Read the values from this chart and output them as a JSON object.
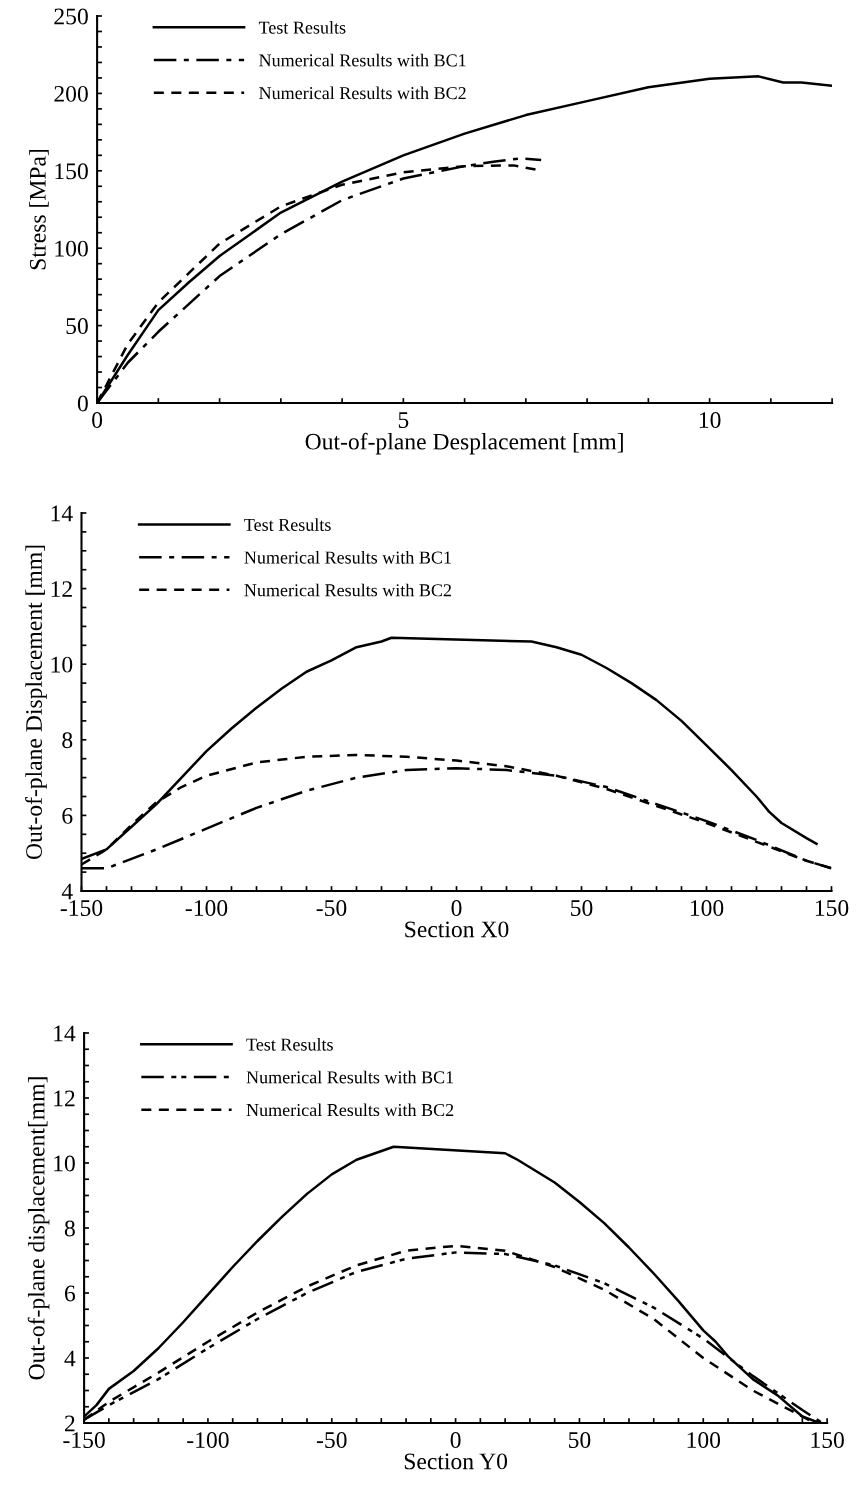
{
  "chart_data": [
    {
      "type": "line",
      "xlabel": "Out-of-plane Desplacement [mm]",
      "ylabel": "Stress [MPa]",
      "legend": "top left",
      "grid": false,
      "xlim": [
        0,
        12
      ],
      "ylim": [
        0,
        250
      ],
      "xticks": [
        0,
        {
          "value": 1,
          "label": null
        },
        {
          "value": 2,
          "label": null
        },
        {
          "value": 3,
          "label": null
        },
        {
          "value": 4,
          "label": null
        },
        5,
        {
          "value": 6,
          "label": null
        },
        {
          "value": 7,
          "label": null
        },
        {
          "value": 8,
          "label": null
        },
        {
          "value": 9,
          "label": null
        },
        10,
        {
          "value": 11,
          "label": null
        },
        {
          "value": 12,
          "label": null
        }
      ],
      "yticks": [
        0,
        {
          "value": 10,
          "label": null
        },
        {
          "value": 20,
          "label": null
        },
        {
          "value": 30,
          "label": null
        },
        {
          "value": 40,
          "label": null
        },
        50,
        {
          "value": 60,
          "label": null
        },
        {
          "value": 70,
          "label": null
        },
        {
          "value": 80,
          "label": null
        },
        {
          "value": 90,
          "label": null
        },
        100,
        {
          "value": 110,
          "label": null
        },
        {
          "value": 120,
          "label": null
        },
        {
          "value": 130,
          "label": null
        },
        {
          "value": 140,
          "label": null
        },
        150,
        {
          "value": 160,
          "label": null
        },
        {
          "value": 170,
          "label": null
        },
        {
          "value": 180,
          "label": null
        },
        {
          "value": 190,
          "label": null
        },
        200,
        {
          "value": 210,
          "label": null
        },
        {
          "value": 220,
          "label": null
        },
        {
          "value": 230,
          "label": null
        },
        {
          "value": 240,
          "label": null
        },
        250
      ],
      "series": [
        {
          "name": "Test Results",
          "color": "#000000",
          "line_style": "solid",
          "x": [
            0,
            0.5,
            1,
            1.5,
            2,
            3,
            4,
            5,
            6,
            7,
            8,
            9,
            10,
            10.8,
            11.2,
            11.5,
            12
          ],
          "values": [
            0,
            31,
            60,
            78,
            95,
            123,
            143,
            160,
            174,
            186,
            195,
            204,
            209.5,
            211,
            207,
            207,
            205
          ]
        },
        {
          "name": "Numerical Results with BC1",
          "color": "#000000",
          "line_style": "dashdot",
          "x": [
            0,
            0.5,
            1,
            2,
            3,
            4,
            5,
            6,
            6.5,
            6.9,
            7.25
          ],
          "values": [
            0,
            26,
            46,
            82,
            109,
            131,
            145,
            153,
            156,
            158,
            157
          ]
        },
        {
          "name": "Numerical Results with BC2",
          "color": "#000000",
          "line_style": "dashed",
          "x": [
            0,
            0.5,
            1,
            2,
            3,
            4,
            5,
            6,
            6.8,
            7.2
          ],
          "values": [
            0,
            38,
            65,
            103,
            127,
            141,
            149,
            153,
            153.5,
            150.5
          ]
        }
      ]
    },
    {
      "type": "line",
      "xlabel": "Section X0",
      "ylabel": "Out-of-plane Displacement [mm]",
      "legend": "top left",
      "grid": false,
      "xlim": [
        -150,
        150
      ],
      "ylim": [
        4,
        14
      ],
      "xticks": [
        -150,
        {
          "value": -140,
          "label": null
        },
        {
          "value": -130,
          "label": null
        },
        {
          "value": -120,
          "label": null
        },
        {
          "value": -110,
          "label": null
        },
        -100,
        {
          "value": -90,
          "label": null
        },
        {
          "value": -80,
          "label": null
        },
        {
          "value": -70,
          "label": null
        },
        {
          "value": -60,
          "label": null
        },
        -50,
        {
          "value": -40,
          "label": null
        },
        {
          "value": -30,
          "label": null
        },
        {
          "value": -20,
          "label": null
        },
        {
          "value": -10,
          "label": null
        },
        0,
        {
          "value": 10,
          "label": null
        },
        {
          "value": 20,
          "label": null
        },
        {
          "value": 30,
          "label": null
        },
        {
          "value": 40,
          "label": null
        },
        50,
        {
          "value": 60,
          "label": null
        },
        {
          "value": 70,
          "label": null
        },
        {
          "value": 80,
          "label": null
        },
        {
          "value": 90,
          "label": null
        },
        100,
        {
          "value": 110,
          "label": null
        },
        {
          "value": 120,
          "label": null
        },
        {
          "value": 130,
          "label": null
        },
        {
          "value": 140,
          "label": null
        },
        150
      ],
      "yticks": [
        4,
        {
          "value": 4.5,
          "label": null
        },
        {
          "value": 5,
          "label": null
        },
        {
          "value": 5.5,
          "label": null
        },
        6,
        {
          "value": 6.5,
          "label": null
        },
        {
          "value": 7,
          "label": null
        },
        {
          "value": 7.5,
          "label": null
        },
        8,
        {
          "value": 8.5,
          "label": null
        },
        {
          "value": 9,
          "label": null
        },
        {
          "value": 9.5,
          "label": null
        },
        10,
        {
          "value": 10.5,
          "label": null
        },
        {
          "value": 11,
          "label": null
        },
        {
          "value": 11.5,
          "label": null
        },
        12,
        {
          "value": 12.5,
          "label": null
        },
        {
          "value": 13,
          "label": null
        },
        {
          "value": 13.5,
          "label": null
        },
        14
      ],
      "series": [
        {
          "name": "Test Results",
          "color": "#000000",
          "line_style": "solid",
          "x": [
            -150,
            -140,
            -130,
            -120,
            -110,
            -100,
            -90,
            -80,
            -70,
            -60,
            -50,
            -40,
            -30,
            -26,
            30,
            40,
            50,
            60,
            70,
            80,
            90,
            100,
            110,
            120,
            125,
            130,
            140,
            144
          ],
          "values": [
            4.85,
            5.1,
            5.7,
            6.3,
            7.0,
            7.7,
            8.3,
            8.85,
            9.35,
            9.8,
            10.1,
            10.45,
            10.6,
            10.7,
            10.6,
            10.45,
            10.25,
            9.9,
            9.5,
            9.05,
            8.5,
            7.85,
            7.2,
            6.5,
            6.1,
            5.8,
            5.4,
            5.25
          ]
        },
        {
          "name": "Numerical Results with BC1",
          "color": "#000000",
          "line_style": "dashdot",
          "x": [
            -150,
            -140,
            -130,
            -120,
            -100,
            -80,
            -60,
            -40,
            -20,
            0,
            20,
            40,
            60,
            80,
            100,
            120,
            140,
            150
          ],
          "values": [
            4.6,
            4.6,
            4.85,
            5.1,
            5.65,
            6.2,
            6.65,
            7.0,
            7.2,
            7.25,
            7.2,
            7.05,
            6.75,
            6.3,
            5.85,
            5.35,
            4.8,
            4.6
          ]
        },
        {
          "name": "Numerical Results with BC2",
          "color": "#000000",
          "line_style": "dashed",
          "x": [
            -150,
            -140,
            -130,
            -120,
            -110,
            -100,
            -80,
            -60,
            -40,
            -20,
            0,
            20,
            40,
            60,
            80,
            100,
            120,
            140,
            150
          ],
          "values": [
            4.7,
            5.1,
            5.75,
            6.35,
            6.75,
            7.05,
            7.4,
            7.55,
            7.6,
            7.55,
            7.45,
            7.3,
            7.05,
            6.7,
            6.25,
            5.8,
            5.3,
            4.8,
            4.6
          ]
        }
      ]
    },
    {
      "type": "line",
      "xlabel": "Section Y0",
      "ylabel": "Out-of-plane displacement[mm]",
      "legend": "top left",
      "grid": false,
      "xlim": [
        -150,
        150
      ],
      "ylim": [
        2,
        14
      ],
      "xticks": [
        -150,
        {
          "value": -140,
          "label": null
        },
        {
          "value": -130,
          "label": null
        },
        {
          "value": -120,
          "label": null
        },
        {
          "value": -110,
          "label": null
        },
        -100,
        {
          "value": -90,
          "label": null
        },
        {
          "value": -80,
          "label": null
        },
        {
          "value": -70,
          "label": null
        },
        {
          "value": -60,
          "label": null
        },
        -50,
        {
          "value": -40,
          "label": null
        },
        {
          "value": -30,
          "label": null
        },
        {
          "value": -20,
          "label": null
        },
        {
          "value": -10,
          "label": null
        },
        0,
        {
          "value": 10,
          "label": null
        },
        {
          "value": 20,
          "label": null
        },
        {
          "value": 30,
          "label": null
        },
        {
          "value": 40,
          "label": null
        },
        50,
        {
          "value": 60,
          "label": null
        },
        {
          "value": 70,
          "label": null
        },
        {
          "value": 80,
          "label": null
        },
        {
          "value": 90,
          "label": null
        },
        100,
        {
          "value": 110,
          "label": null
        },
        {
          "value": 120,
          "label": null
        },
        {
          "value": 130,
          "label": null
        },
        {
          "value": 140,
          "label": null
        },
        150
      ],
      "yticks": [
        2,
        {
          "value": 2.5,
          "label": null
        },
        {
          "value": 3,
          "label": null
        },
        {
          "value": 3.5,
          "label": null
        },
        4,
        {
          "value": 4.5,
          "label": null
        },
        {
          "value": 5,
          "label": null
        },
        {
          "value": 5.5,
          "label": null
        },
        6,
        {
          "value": 6.5,
          "label": null
        },
        {
          "value": 7,
          "label": null
        },
        {
          "value": 7.5,
          "label": null
        },
        8,
        {
          "value": 8.5,
          "label": null
        },
        {
          "value": 9,
          "label": null
        },
        {
          "value": 9.5,
          "label": null
        },
        10,
        {
          "value": 10.5,
          "label": null
        },
        {
          "value": 11,
          "label": null
        },
        {
          "value": 11.5,
          "label": null
        },
        12,
        {
          "value": 12.5,
          "label": null
        },
        {
          "value": 13,
          "label": null
        },
        {
          "value": 13.5,
          "label": null
        },
        14
      ],
      "series": [
        {
          "name": "Test Results",
          "color": "#000000",
          "line_style": "solid",
          "x": [
            -150,
            -145,
            -140,
            -130,
            -120,
            -110,
            -100,
            -90,
            -80,
            -70,
            -60,
            -50,
            -40,
            -25,
            20,
            25,
            40,
            50,
            60,
            70,
            80,
            90,
            100,
            105,
            110,
            120,
            130,
            140,
            147
          ],
          "values": [
            2.2,
            2.55,
            3.05,
            3.6,
            4.3,
            5.1,
            5.95,
            6.8,
            7.6,
            8.35,
            9.05,
            9.65,
            10.1,
            10.5,
            10.3,
            10.1,
            9.4,
            8.8,
            8.15,
            7.4,
            6.6,
            5.75,
            4.85,
            4.5,
            4.05,
            3.35,
            2.85,
            2.2,
            2.0
          ]
        },
        {
          "name": "Numerical Results with BC1",
          "color": "#000000",
          "line_style": "dashdotdot",
          "x": [
            -150,
            -140,
            -120,
            -100,
            -80,
            -60,
            -40,
            -20,
            0,
            20,
            40,
            60,
            80,
            100,
            120,
            140,
            148
          ],
          "values": [
            2.1,
            2.55,
            3.35,
            4.3,
            5.2,
            6.0,
            6.65,
            7.05,
            7.25,
            7.2,
            6.85,
            6.3,
            5.55,
            4.6,
            3.45,
            2.4,
            2.0
          ]
        },
        {
          "name": "Numerical Results with BC2",
          "color": "#000000",
          "line_style": "dashed",
          "x": [
            -150,
            -140,
            -120,
            -100,
            -80,
            -60,
            -40,
            -20,
            0,
            20,
            40,
            60,
            80,
            100,
            120,
            140,
            145
          ],
          "values": [
            2.1,
            2.65,
            3.55,
            4.5,
            5.4,
            6.2,
            6.85,
            7.3,
            7.45,
            7.3,
            6.8,
            6.1,
            5.2,
            4.0,
            3.0,
            2.2,
            2.0
          ]
        }
      ]
    }
  ]
}
